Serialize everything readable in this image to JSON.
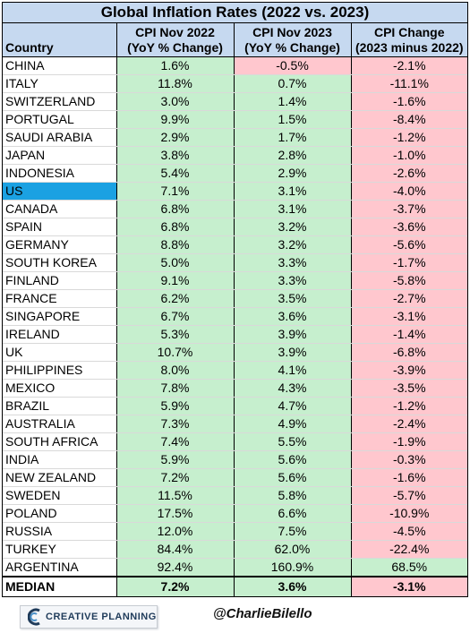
{
  "title": "Global Inflation Rates (2022 vs. 2023)",
  "headers": [
    "Country",
    "CPI Nov 2022\n(YoY % Change)",
    "CPI Nov 2023\n(YoY % Change)",
    "CPI Change\n(2023 minus 2022)"
  ],
  "header_lines": [
    [
      "Country"
    ],
    [
      "CPI Nov 2022",
      "(YoY % Change)"
    ],
    [
      "CPI Nov 2023",
      "(YoY % Change)"
    ],
    [
      "CPI Change",
      "(2023 minus 2022)"
    ]
  ],
  "colors": {
    "header_bg": "#c6d9f0",
    "positive_bg": "#c6efce",
    "negative_bg": "#ffc7ce",
    "highlight_bg": "#1ba1e2"
  },
  "chart_data": {
    "type": "table",
    "title": "Global Inflation Rates (2022 vs. 2023)",
    "columns": [
      "Country",
      "CPI Nov 2022 (YoY % Change)",
      "CPI Nov 2023 (YoY % Change)",
      "CPI Change (2023 minus 2022)"
    ],
    "rows": [
      {
        "country": "CHINA",
        "cpi_2022": "1.6%",
        "cpi_2023": "-0.5%",
        "change": "-2.1%"
      },
      {
        "country": "ITALY",
        "cpi_2022": "11.8%",
        "cpi_2023": "0.7%",
        "change": "-11.1%"
      },
      {
        "country": "SWITZERLAND",
        "cpi_2022": "3.0%",
        "cpi_2023": "1.4%",
        "change": "-1.6%"
      },
      {
        "country": "PORTUGAL",
        "cpi_2022": "9.9%",
        "cpi_2023": "1.5%",
        "change": "-8.4%"
      },
      {
        "country": "SAUDI ARABIA",
        "cpi_2022": "2.9%",
        "cpi_2023": "1.7%",
        "change": "-1.2%"
      },
      {
        "country": "JAPAN",
        "cpi_2022": "3.8%",
        "cpi_2023": "2.8%",
        "change": "-1.0%"
      },
      {
        "country": "INDONESIA",
        "cpi_2022": "5.4%",
        "cpi_2023": "2.9%",
        "change": "-2.6%"
      },
      {
        "country": "US",
        "cpi_2022": "7.1%",
        "cpi_2023": "3.1%",
        "change": "-4.0%",
        "highlight": true
      },
      {
        "country": "CANADA",
        "cpi_2022": "6.8%",
        "cpi_2023": "3.1%",
        "change": "-3.7%"
      },
      {
        "country": "SPAIN",
        "cpi_2022": "6.8%",
        "cpi_2023": "3.2%",
        "change": "-3.6%"
      },
      {
        "country": "GERMANY",
        "cpi_2022": "8.8%",
        "cpi_2023": "3.2%",
        "change": "-5.6%"
      },
      {
        "country": "SOUTH KOREA",
        "cpi_2022": "5.0%",
        "cpi_2023": "3.3%",
        "change": "-1.7%"
      },
      {
        "country": "FINLAND",
        "cpi_2022": "9.1%",
        "cpi_2023": "3.3%",
        "change": "-5.8%"
      },
      {
        "country": "FRANCE",
        "cpi_2022": "6.2%",
        "cpi_2023": "3.5%",
        "change": "-2.7%"
      },
      {
        "country": "SINGAPORE",
        "cpi_2022": "6.7%",
        "cpi_2023": "3.6%",
        "change": "-3.1%"
      },
      {
        "country": "IRELAND",
        "cpi_2022": "5.3%",
        "cpi_2023": "3.9%",
        "change": "-1.4%"
      },
      {
        "country": "UK",
        "cpi_2022": "10.7%",
        "cpi_2023": "3.9%",
        "change": "-6.8%"
      },
      {
        "country": "PHILIPPINES",
        "cpi_2022": "8.0%",
        "cpi_2023": "4.1%",
        "change": "-3.9%"
      },
      {
        "country": "MEXICO",
        "cpi_2022": "7.8%",
        "cpi_2023": "4.3%",
        "change": "-3.5%"
      },
      {
        "country": "BRAZIL",
        "cpi_2022": "5.9%",
        "cpi_2023": "4.7%",
        "change": "-1.2%"
      },
      {
        "country": "AUSTRALIA",
        "cpi_2022": "7.3%",
        "cpi_2023": "4.9%",
        "change": "-2.4%"
      },
      {
        "country": "SOUTH AFRICA",
        "cpi_2022": "7.4%",
        "cpi_2023": "5.5%",
        "change": "-1.9%"
      },
      {
        "country": "INDIA",
        "cpi_2022": "5.9%",
        "cpi_2023": "5.6%",
        "change": "-0.3%"
      },
      {
        "country": "NEW ZEALAND",
        "cpi_2022": "7.2%",
        "cpi_2023": "5.6%",
        "change": "-1.6%"
      },
      {
        "country": "SWEDEN",
        "cpi_2022": "11.5%",
        "cpi_2023": "5.8%",
        "change": "-5.7%"
      },
      {
        "country": "POLAND",
        "cpi_2022": "17.5%",
        "cpi_2023": "6.6%",
        "change": "-10.9%"
      },
      {
        "country": "RUSSIA",
        "cpi_2022": "12.0%",
        "cpi_2023": "7.5%",
        "change": "-4.5%"
      },
      {
        "country": "TURKEY",
        "cpi_2022": "84.4%",
        "cpi_2023": "62.0%",
        "change": "-22.4%"
      },
      {
        "country": "ARGENTINA",
        "cpi_2022": "92.4%",
        "cpi_2023": "160.9%",
        "change": "68.5%"
      }
    ],
    "median": {
      "country": "MEDIAN",
      "cpi_2022": "7.2%",
      "cpi_2023": "3.6%",
      "change": "-3.1%"
    }
  },
  "footer": {
    "brand": "CREATIVE PLANNING",
    "brand_icon": "creative-planning-logo-icon",
    "handle": "@CharlieBilello"
  }
}
